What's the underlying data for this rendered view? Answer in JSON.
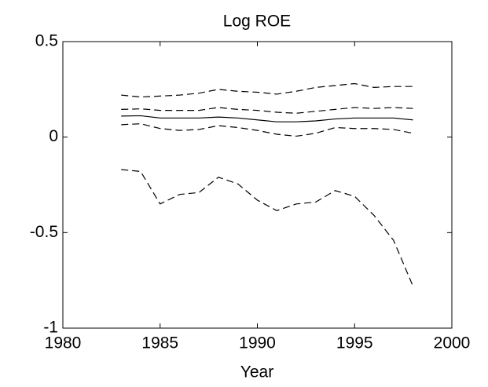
{
  "chart_data": {
    "type": "line",
    "title": "Log ROE",
    "xlabel": "Year",
    "x": [
      1983,
      1984,
      1985,
      1986,
      1987,
      1988,
      1989,
      1990,
      1991,
      1992,
      1993,
      1994,
      1995,
      1996,
      1997,
      1998
    ],
    "series": [
      {
        "color": "#000000",
        "dash": false,
        "values": [
          0.11,
          0.112,
          0.1,
          0.1,
          0.1,
          0.105,
          0.1,
          0.09,
          0.08,
          0.08,
          0.085,
          0.095,
          0.1,
          0.1,
          0.1,
          0.09
        ]
      },
      {
        "color": "#000000",
        "dash": true,
        "values": [
          0.22,
          0.21,
          0.215,
          0.22,
          0.23,
          0.25,
          0.24,
          0.235,
          0.225,
          0.24,
          0.26,
          0.27,
          0.28,
          0.26,
          0.265,
          0.265
        ]
      },
      {
        "color": "#000000",
        "dash": true,
        "values": [
          0.145,
          0.148,
          0.14,
          0.14,
          0.14,
          0.155,
          0.145,
          0.14,
          0.13,
          0.125,
          0.135,
          0.145,
          0.155,
          0.15,
          0.155,
          0.15
        ]
      },
      {
        "color": "#000000",
        "dash": true,
        "values": [
          0.065,
          0.07,
          0.045,
          0.035,
          0.04,
          0.06,
          0.05,
          0.035,
          0.015,
          0.005,
          0.02,
          0.05,
          0.045,
          0.045,
          0.04,
          0.02
        ]
      },
      {
        "color": "#000000",
        "dash": true,
        "values": [
          -0.17,
          -0.18,
          -0.35,
          -0.3,
          -0.29,
          -0.21,
          -0.245,
          -0.33,
          -0.385,
          -0.35,
          -0.34,
          -0.28,
          -0.31,
          -0.41,
          -0.54,
          -0.78
        ]
      }
    ],
    "xlim": [
      1980,
      2000
    ],
    "xticks": [
      1980,
      1985,
      1990,
      1995,
      2000
    ],
    "ylim": [
      -1,
      0.5
    ],
    "yticks": [
      -1,
      -0.5,
      0,
      0.5
    ],
    "grid": false
  }
}
